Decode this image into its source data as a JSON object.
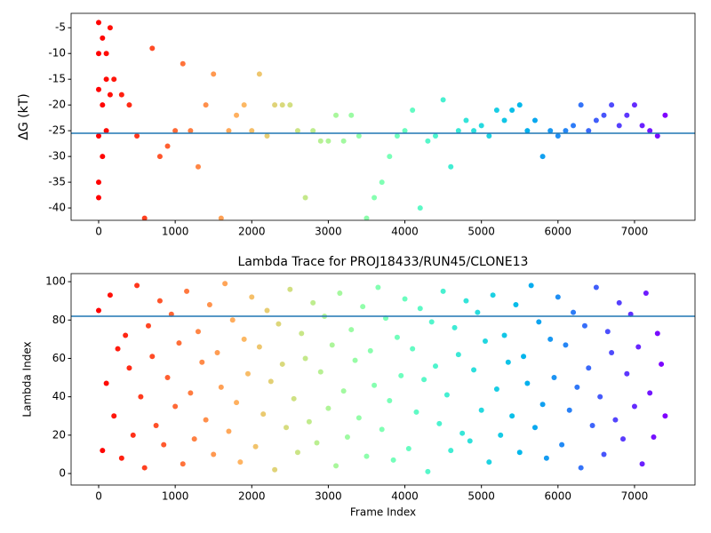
{
  "chart_data": [
    {
      "type": "scatter",
      "ylabel": "ΔG (kT)",
      "colormap": "rainbow_r",
      "x": [
        0,
        0,
        0,
        0,
        0,
        0,
        50,
        50,
        50,
        100,
        100,
        100,
        150,
        150,
        200,
        300,
        400,
        500,
        600,
        700,
        800,
        900,
        1000,
        1100,
        1200,
        1300,
        1400,
        1500,
        1600,
        1700,
        1800,
        1900,
        2000,
        2100,
        2200,
        2300,
        2400,
        2500,
        2600,
        2700,
        2800,
        2900,
        3000,
        3100,
        3200,
        3300,
        3400,
        3500,
        3600,
        3700,
        3800,
        3900,
        4000,
        4100,
        4200,
        4300,
        4400,
        4500,
        4600,
        4700,
        4800,
        4900,
        5000,
        5100,
        5200,
        5300,
        5400,
        5500,
        5600,
        5700,
        5800,
        5900,
        6000,
        6100,
        6200,
        6300,
        6400,
        6500,
        6600,
        6700,
        6800,
        6900,
        7000,
        7100,
        7200,
        7300,
        7400
      ],
      "values": [
        -4,
        -10,
        -17,
        -26,
        -35,
        -38,
        -7,
        -20,
        -30,
        -10,
        -15,
        -25,
        -5,
        -18,
        -15,
        -18,
        -20,
        -26,
        -42,
        -9,
        -30,
        -28,
        -25,
        -12,
        -25,
        -32,
        -20,
        -14,
        -42,
        -25,
        -22,
        -20,
        -25,
        -14,
        -26,
        -20,
        -20,
        -20,
        -25,
        -38,
        -25,
        -27,
        -27,
        -22,
        -27,
        -22,
        -26,
        -42,
        -38,
        -35,
        -30,
        -26,
        -25,
        -21,
        -40,
        -27,
        -26,
        -19,
        -32,
        -25,
        -23,
        -25,
        -24,
        -26,
        -21,
        -23,
        -21,
        -20,
        -25,
        -23,
        -30,
        -25,
        -26,
        -25,
        -24,
        -20,
        -25,
        -23,
        -22,
        -20,
        -24,
        -22,
        -20,
        -24,
        -25,
        -26,
        -22
      ],
      "hline": {
        "value": -25.5,
        "color": "#1f77b4"
      },
      "xlim": [
        -360,
        7790
      ],
      "xticks": [
        0,
        1000,
        2000,
        3000,
        4000,
        5000,
        6000,
        7000
      ],
      "ylim": [
        -42.4,
        -2.2
      ],
      "yticks": [
        -40,
        -35,
        -30,
        -25,
        -20,
        -15,
        -10,
        -5
      ]
    },
    {
      "type": "scatter",
      "title": "Lambda Trace for PROJ18433/RUN45/CLONE13",
      "xlabel": "Frame Index",
      "ylabel": "Lambda Index",
      "colormap": "rainbow_r",
      "x": [
        0,
        50,
        100,
        150,
        200,
        250,
        300,
        350,
        400,
        450,
        500,
        550,
        600,
        650,
        700,
        750,
        800,
        850,
        900,
        950,
        1000,
        1050,
        1100,
        1150,
        1200,
        1250,
        1300,
        1350,
        1400,
        1450,
        1500,
        1550,
        1600,
        1650,
        1700,
        1750,
        1800,
        1850,
        1900,
        1950,
        2000,
        2050,
        2100,
        2150,
        2200,
        2250,
        2300,
        2350,
        2400,
        2450,
        2500,
        2550,
        2600,
        2650,
        2700,
        2750,
        2800,
        2850,
        2900,
        2950,
        3000,
        3050,
        3100,
        3150,
        3200,
        3250,
        3300,
        3350,
        3400,
        3450,
        3500,
        3550,
        3600,
        3650,
        3700,
        3750,
        3800,
        3850,
        3900,
        3950,
        4000,
        4050,
        4100,
        4150,
        4200,
        4250,
        4300,
        4350,
        4400,
        4450,
        4500,
        4550,
        4600,
        4650,
        4700,
        4750,
        4800,
        4850,
        4900,
        4950,
        5000,
        5050,
        5100,
        5150,
        5200,
        5250,
        5300,
        5350,
        5400,
        5450,
        5500,
        5550,
        5600,
        5650,
        5700,
        5750,
        5800,
        5850,
        5900,
        5950,
        6000,
        6050,
        6100,
        6150,
        6200,
        6250,
        6300,
        6350,
        6400,
        6450,
        6500,
        6550,
        6600,
        6650,
        6700,
        6750,
        6800,
        6850,
        6900,
        6950,
        7000,
        7050,
        7100,
        7150,
        7200,
        7250,
        7300,
        7350,
        7400
      ],
      "values": [
        85,
        12,
        47,
        93,
        30,
        65,
        8,
        72,
        55,
        20,
        98,
        40,
        3,
        77,
        61,
        25,
        90,
        15,
        50,
        83,
        35,
        68,
        5,
        95,
        42,
        18,
        74,
        58,
        28,
        88,
        10,
        63,
        45,
        99,
        22,
        80,
        37,
        6,
        70,
        52,
        92,
        14,
        66,
        31,
        85,
        48,
        2,
        78,
        57,
        24,
        96,
        39,
        11,
        73,
        60,
        27,
        89,
        16,
        53,
        82,
        34,
        67,
        4,
        94,
        43,
        19,
        75,
        59,
        29,
        87,
        9,
        64,
        46,
        97,
        23,
        81,
        38,
        7,
        71,
        51,
        91,
        13,
        65,
        32,
        86,
        49,
        1,
        79,
        56,
        26,
        95,
        41,
        12,
        76,
        62,
        21,
        90,
        17,
        54,
        84,
        33,
        69,
        6,
        93,
        44,
        20,
        72,
        58,
        30,
        88,
        11,
        61,
        47,
        98,
        24,
        79,
        36,
        8,
        70,
        50,
        92,
        15,
        67,
        33,
        84,
        45,
        3,
        77,
        55,
        25,
        97,
        40,
        10,
        74,
        63,
        28,
        89,
        18,
        52,
        83,
        35,
        66,
        5,
        94,
        42,
        19,
        73,
        57,
        30
      ],
      "hline": {
        "value": 82,
        "color": "#1f77b4"
      },
      "xlim": [
        -360,
        7790
      ],
      "xticks": [
        0,
        1000,
        2000,
        3000,
        4000,
        5000,
        6000,
        7000
      ],
      "ylim": [
        -6,
        104.2
      ],
      "yticks": [
        0,
        20,
        40,
        60,
        80,
        100
      ]
    }
  ]
}
